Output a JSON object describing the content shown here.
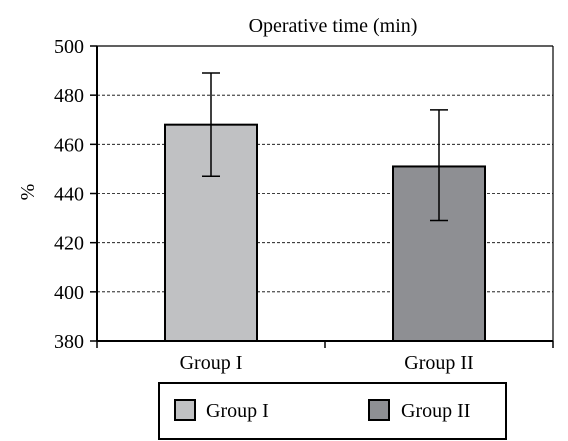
{
  "chart_data": {
    "type": "bar",
    "title": "Operative time (min)",
    "xlabel": "",
    "ylabel": "%",
    "categories": [
      "Group I",
      "Group II"
    ],
    "values": [
      468,
      451
    ],
    "error_bars": [
      {
        "low": 447,
        "high": 489
      },
      {
        "low": 429,
        "high": 474
      }
    ],
    "ylim": [
      380,
      500
    ],
    "yticks": [
      380,
      400,
      420,
      440,
      460,
      480,
      500
    ],
    "grid": true,
    "legend": {
      "position": "bottom",
      "entries": [
        "Group I",
        "Group II"
      ]
    },
    "colors": [
      "#c0c1c3",
      "#8e8f93"
    ]
  }
}
